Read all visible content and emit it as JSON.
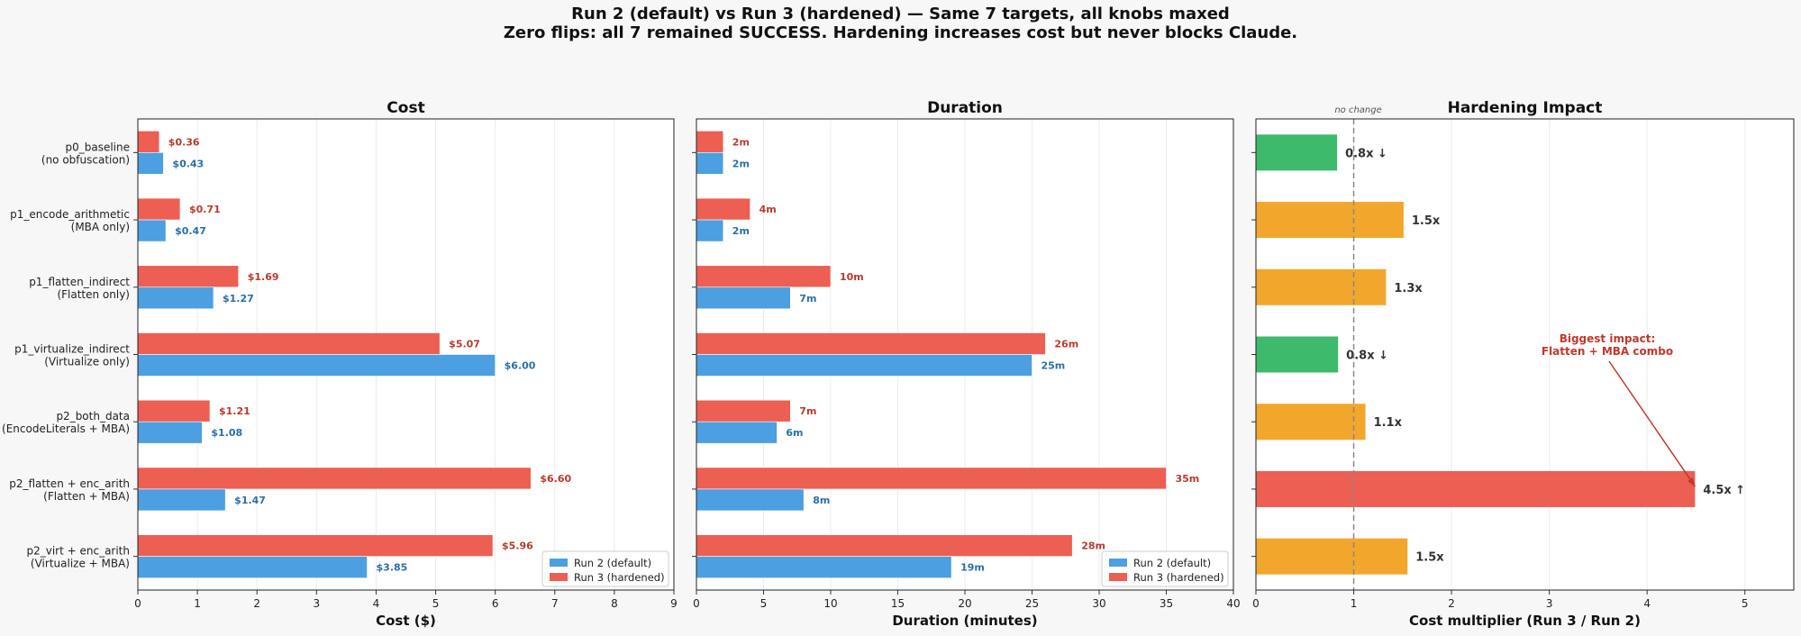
{
  "title": "Run 2 (default) vs Run 3 (hardened) — Same 7 targets, all knobs maxed",
  "subtitle": "Zero flips: all 7 remained SUCCESS. Hardening increases cost but never blocks Claude.",
  "colors": {
    "run2": "#4c9fe0",
    "run3": "#ec5f52",
    "green": "#3dba6c",
    "orange": "#f3a62c",
    "red": "#ec5f52",
    "run2_text": "#2a6fa8",
    "run3_text": "#b83a2e",
    "annotation": "#c0392b"
  },
  "chart_data": [
    {
      "type": "bar",
      "orientation": "horizontal",
      "title": "Cost",
      "xlabel": "Cost ($)",
      "xlim": [
        0,
        9
      ],
      "xticks": [
        0,
        1,
        2,
        3,
        4,
        5,
        6,
        7,
        8,
        9
      ],
      "grid": true,
      "legend_placement": "lower-right",
      "categories": [
        [
          "p0_baseline",
          "(no obfuscation)"
        ],
        [
          "p1_encode_arithmetic",
          "(MBA only)"
        ],
        [
          "p1_flatten_indirect",
          "(Flatten only)"
        ],
        [
          "p1_virtualize_indirect",
          "(Virtualize only)"
        ],
        [
          "p2_both_data",
          "(EncodeLiterals + MBA)"
        ],
        [
          "p2_flatten + enc_arith",
          "(Flatten + MBA)"
        ],
        [
          "p2_virt + enc_arith",
          "(Virtualize + MBA)"
        ]
      ],
      "series": [
        {
          "name": "Run 2 (default)",
          "values": [
            0.43,
            0.47,
            1.27,
            6.0,
            1.08,
            1.47,
            3.85
          ],
          "labels": [
            "$0.43",
            "$0.47",
            "$1.27",
            "$6.00",
            "$1.08",
            "$1.47",
            "$3.85"
          ]
        },
        {
          "name": "Run 3 (hardened)",
          "values": [
            0.36,
            0.71,
            1.69,
            5.07,
            1.21,
            6.6,
            5.96
          ],
          "labels": [
            "$0.36",
            "$0.71",
            "$1.69",
            "$5.07",
            "$1.21",
            "$6.60",
            "$5.96"
          ]
        }
      ]
    },
    {
      "type": "bar",
      "orientation": "horizontal",
      "title": "Duration",
      "xlabel": "Duration (minutes)",
      "xlim": [
        0,
        40
      ],
      "xticks": [
        0,
        5,
        10,
        15,
        20,
        25,
        30,
        35,
        40
      ],
      "grid": true,
      "legend_placement": "lower-right",
      "series": [
        {
          "name": "Run 2 (default)",
          "values": [
            2,
            2,
            7,
            25,
            6,
            8,
            19
          ],
          "labels": [
            "2m",
            "2m",
            "7m",
            "25m",
            "6m",
            "8m",
            "19m"
          ]
        },
        {
          "name": "Run 3 (hardened)",
          "values": [
            2,
            4,
            10,
            26,
            7,
            35,
            28
          ],
          "labels": [
            "2m",
            "4m",
            "10m",
            "26m",
            "7m",
            "35m",
            "28m"
          ]
        }
      ]
    },
    {
      "type": "bar",
      "orientation": "horizontal",
      "title": "Hardening Impact",
      "xlabel": "Cost multiplier (Run 3 / Run 2)",
      "xlim": [
        0,
        5.5
      ],
      "xticks": [
        0,
        1,
        2,
        3,
        4,
        5
      ],
      "grid": true,
      "reference_line": {
        "x": 1,
        "label": "no change"
      },
      "values": [
        0.83,
        1.51,
        1.33,
        0.84,
        1.12,
        4.49,
        1.55
      ],
      "labels": [
        "0.8x ↓",
        "1.5x",
        "1.3x",
        "0.8x ↓",
        "1.1x",
        "4.5x ↑",
        "1.5x"
      ],
      "bar_colors": [
        "green",
        "orange",
        "orange",
        "green",
        "orange",
        "red",
        "orange"
      ],
      "annotation": {
        "text": [
          "Biggest impact:",
          "Flatten + MBA combo"
        ],
        "points_to_index": 5
      }
    }
  ]
}
